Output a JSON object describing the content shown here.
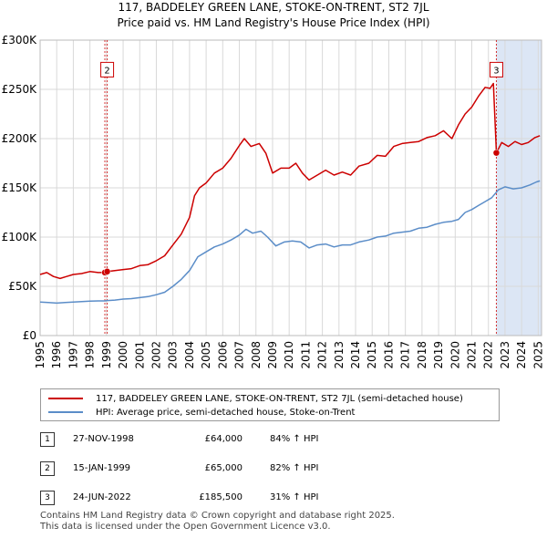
{
  "title": {
    "line1": "117, BADDELEY GREEN LANE, STOKE-ON-TRENT, ST2 7JL",
    "line2": "Price paid vs. HM Land Registry's House Price Index (HPI)"
  },
  "colors": {
    "price_line": "#cc0000",
    "hpi_line": "#5b8dc8",
    "highlight_band": "#dce6f5",
    "marker_line": "#cc0000",
    "grid": "#d9d9d9"
  },
  "chart_data": {
    "type": "line",
    "title": "Price paid vs. HM Land Registry's House Price Index (HPI)",
    "xlabel": "",
    "ylabel": "",
    "xlim": [
      1995,
      2025.2
    ],
    "ylim": [
      0,
      300000
    ],
    "ytick_labels": [
      "£0",
      "£50K",
      "£100K",
      "£150K",
      "£200K",
      "£250K",
      "£300K"
    ],
    "ytick_values": [
      0,
      50000,
      100000,
      150000,
      200000,
      250000,
      300000
    ],
    "xtick_labels": [
      "1995",
      "1996",
      "1997",
      "1998",
      "1999",
      "2000",
      "2001",
      "2002",
      "2003",
      "2004",
      "2005",
      "2006",
      "2007",
      "2008",
      "2009",
      "2010",
      "2011",
      "2012",
      "2013",
      "2014",
      "2015",
      "2016",
      "2017",
      "2018",
      "2019",
      "2020",
      "2021",
      "2022",
      "2023",
      "2024",
      "2025"
    ],
    "grid": true,
    "legend_position": "bottom",
    "highlight_range": [
      2022.48,
      2025.2
    ],
    "series": [
      {
        "name": "117, BADDELEY GREEN LANE, STOKE-ON-TRENT, ST2 7JL (semi-detached house)",
        "color": "#cc0000",
        "points": [
          [
            1995.0,
            62000
          ],
          [
            1995.4,
            64000
          ],
          [
            1995.8,
            60000
          ],
          [
            1996.2,
            58000
          ],
          [
            1996.6,
            60000
          ],
          [
            1997.0,
            62000
          ],
          [
            1997.5,
            63000
          ],
          [
            1998.0,
            65000
          ],
          [
            1998.5,
            64000
          ],
          [
            1998.9,
            64000
          ],
          [
            1999.05,
            65000
          ],
          [
            1999.5,
            66000
          ],
          [
            2000.0,
            67000
          ],
          [
            2000.5,
            68000
          ],
          [
            2001.0,
            71000
          ],
          [
            2001.5,
            72000
          ],
          [
            2002.0,
            76000
          ],
          [
            2002.5,
            81000
          ],
          [
            2003.0,
            92000
          ],
          [
            2003.5,
            103000
          ],
          [
            2004.0,
            120000
          ],
          [
            2004.3,
            142000
          ],
          [
            2004.6,
            150000
          ],
          [
            2005.0,
            155000
          ],
          [
            2005.5,
            165000
          ],
          [
            2006.0,
            170000
          ],
          [
            2006.5,
            180000
          ],
          [
            2007.0,
            193000
          ],
          [
            2007.3,
            200000
          ],
          [
            2007.7,
            192000
          ],
          [
            2008.2,
            195000
          ],
          [
            2008.6,
            185000
          ],
          [
            2009.0,
            165000
          ],
          [
            2009.5,
            170000
          ],
          [
            2010.0,
            170000
          ],
          [
            2010.4,
            175000
          ],
          [
            2010.8,
            165000
          ],
          [
            2011.2,
            158000
          ],
          [
            2011.7,
            163000
          ],
          [
            2012.2,
            168000
          ],
          [
            2012.7,
            163000
          ],
          [
            2013.2,
            166000
          ],
          [
            2013.7,
            163000
          ],
          [
            2014.2,
            172000
          ],
          [
            2014.8,
            175000
          ],
          [
            2015.3,
            183000
          ],
          [
            2015.8,
            182000
          ],
          [
            2016.3,
            192000
          ],
          [
            2016.8,
            195000
          ],
          [
            2017.3,
            196000
          ],
          [
            2017.8,
            197000
          ],
          [
            2018.3,
            201000
          ],
          [
            2018.8,
            203000
          ],
          [
            2019.3,
            208000
          ],
          [
            2019.8,
            200000
          ],
          [
            2020.2,
            214000
          ],
          [
            2020.6,
            225000
          ],
          [
            2021.0,
            232000
          ],
          [
            2021.4,
            243000
          ],
          [
            2021.8,
            252000
          ],
          [
            2022.1,
            251000
          ],
          [
            2022.3,
            256000
          ],
          [
            2022.48,
            185500
          ],
          [
            2022.8,
            196000
          ],
          [
            2023.2,
            192000
          ],
          [
            2023.6,
            197000
          ],
          [
            2024.0,
            194000
          ],
          [
            2024.4,
            196000
          ],
          [
            2024.8,
            201000
          ],
          [
            2025.1,
            203000
          ]
        ]
      },
      {
        "name": "HPI: Average price, semi-detached house, Stoke-on-Trent",
        "color": "#5b8dc8",
        "points": [
          [
            1995.0,
            34000
          ],
          [
            1995.5,
            33500
          ],
          [
            1996.0,
            33000
          ],
          [
            1996.5,
            33500
          ],
          [
            1997.0,
            34000
          ],
          [
            1997.5,
            34500
          ],
          [
            1998.0,
            35000
          ],
          [
            1998.5,
            35200
          ],
          [
            1998.9,
            35200
          ],
          [
            1999.05,
            35600
          ],
          [
            1999.5,
            36000
          ],
          [
            2000.0,
            37000
          ],
          [
            2000.5,
            37500
          ],
          [
            2001.0,
            38500
          ],
          [
            2001.5,
            39500
          ],
          [
            2002.0,
            41500
          ],
          [
            2002.5,
            44000
          ],
          [
            2003.0,
            50000
          ],
          [
            2003.5,
            57000
          ],
          [
            2004.0,
            66000
          ],
          [
            2004.5,
            80000
          ],
          [
            2005.0,
            85000
          ],
          [
            2005.5,
            90000
          ],
          [
            2006.0,
            93000
          ],
          [
            2006.5,
            97000
          ],
          [
            2007.0,
            102000
          ],
          [
            2007.4,
            108000
          ],
          [
            2007.8,
            104000
          ],
          [
            2008.3,
            106000
          ],
          [
            2008.7,
            100000
          ],
          [
            2009.2,
            91000
          ],
          [
            2009.7,
            95000
          ],
          [
            2010.2,
            96000
          ],
          [
            2010.7,
            95000
          ],
          [
            2011.2,
            89000
          ],
          [
            2011.7,
            92000
          ],
          [
            2012.2,
            93000
          ],
          [
            2012.7,
            90000
          ],
          [
            2013.2,
            92000
          ],
          [
            2013.7,
            92000
          ],
          [
            2014.2,
            95000
          ],
          [
            2014.8,
            97000
          ],
          [
            2015.3,
            100000
          ],
          [
            2015.8,
            101000
          ],
          [
            2016.3,
            104000
          ],
          [
            2016.8,
            105000
          ],
          [
            2017.3,
            106000
          ],
          [
            2017.8,
            109000
          ],
          [
            2018.3,
            110000
          ],
          [
            2018.8,
            113000
          ],
          [
            2019.3,
            115000
          ],
          [
            2019.8,
            116000
          ],
          [
            2020.2,
            118000
          ],
          [
            2020.6,
            125000
          ],
          [
            2021.0,
            128000
          ],
          [
            2021.4,
            132000
          ],
          [
            2021.8,
            136000
          ],
          [
            2022.2,
            140000
          ],
          [
            2022.6,
            148000
          ],
          [
            2023.0,
            151000
          ],
          [
            2023.5,
            149000
          ],
          [
            2024.0,
            150000
          ],
          [
            2024.5,
            153000
          ],
          [
            2024.9,
            156000
          ],
          [
            2025.1,
            157000
          ]
        ]
      }
    ],
    "transactions": [
      {
        "label": "1",
        "x": 1998.9,
        "y": 64000
      },
      {
        "label": "2",
        "x": 1999.04,
        "y": 65000
      },
      {
        "label": "3",
        "x": 2022.48,
        "y": 185500
      }
    ],
    "boxed_labels": [
      {
        "label": "2",
        "x": 1999.04,
        "y": 270000
      },
      {
        "label": "3",
        "x": 2022.48,
        "y": 270000
      }
    ]
  },
  "legend": {
    "items": [
      {
        "label": "117, BADDELEY GREEN LANE, STOKE-ON-TRENT, ST2 7JL (semi-detached house)",
        "color": "#cc0000"
      },
      {
        "label": "HPI: Average price, semi-detached house, Stoke-on-Trent",
        "color": "#5b8dc8"
      }
    ]
  },
  "transactions_table": [
    {
      "num": "1",
      "date": "27-NOV-1998",
      "price": "£64,000",
      "hpi": "84% ↑ HPI"
    },
    {
      "num": "2",
      "date": "15-JAN-1999",
      "price": "£65,000",
      "hpi": "82% ↑ HPI"
    },
    {
      "num": "3",
      "date": "24-JUN-2022",
      "price": "£185,500",
      "hpi": "31% ↑ HPI"
    }
  ],
  "footer": {
    "line1": "Contains HM Land Registry data © Crown copyright and database right 2025.",
    "line2": "This data is licensed under the Open Government Licence v3.0."
  }
}
